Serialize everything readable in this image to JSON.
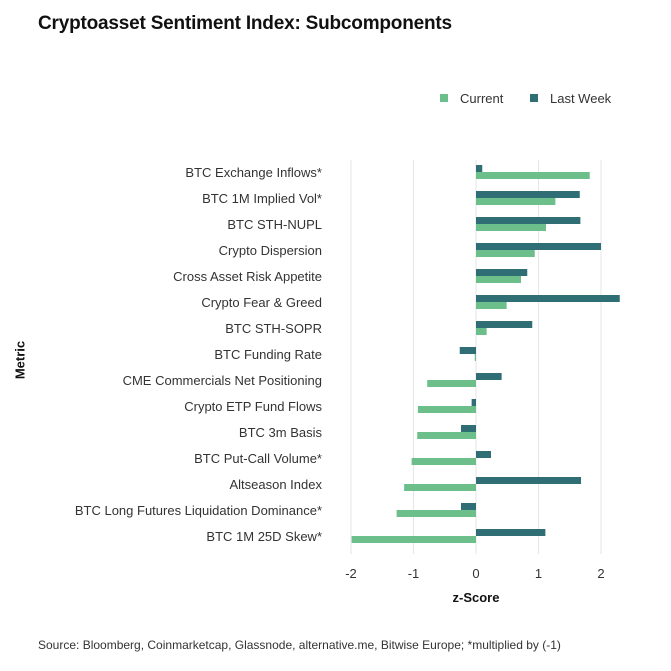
{
  "title": "Cryptoasset Sentiment Index: Subcomponents",
  "source": "Source: Bloomberg, Coinmarketcap, Glassnode, alternative.me, Bitwise Europe; *multiplied by (-1)",
  "chart_data": {
    "type": "bar",
    "orientation": "horizontal",
    "title": "Cryptoasset Sentiment Index: Subcomponents",
    "xlabel": "z-Score",
    "ylabel": "Metric",
    "xlim": [
      -2.1,
      2.3
    ],
    "xticks": [
      -2,
      -1,
      0,
      1,
      2
    ],
    "xtick_labels": [
      "-2",
      "-1",
      "0",
      "1",
      "2"
    ],
    "grid": true,
    "legend_position": "top-right",
    "categories": [
      "BTC Exchange Inflows*",
      "BTC 1M Implied Vol*",
      "BTC STH-NUPL",
      "Crypto Dispersion",
      "Cross Asset Risk Appetite",
      "Crypto Fear & Greed",
      "BTC STH-SOPR",
      "BTC Funding Rate",
      "CME Commercials Net Positioning",
      "Crypto ETP Fund Flows",
      "BTC 3m Basis",
      "BTC Put-Call Volume*",
      "Altseason Index",
      "BTC Long Futures Liquidation Dominance*",
      "BTC 1M 25D Skew*"
    ],
    "series": [
      {
        "name": "Current",
        "color": "#6cbe8b",
        "values": [
          1.82,
          1.27,
          1.12,
          0.94,
          0.72,
          0.49,
          0.17,
          -0.02,
          -0.78,
          -0.93,
          -0.94,
          -1.03,
          -1.15,
          -1.27,
          -1.99
        ]
      },
      {
        "name": "Last Week",
        "color": "#2e6e74",
        "values": [
          0.1,
          1.66,
          1.67,
          2.0,
          0.82,
          2.3,
          0.9,
          -0.26,
          0.41,
          -0.07,
          -0.24,
          0.24,
          1.68,
          -0.24,
          1.11
        ]
      }
    ]
  }
}
